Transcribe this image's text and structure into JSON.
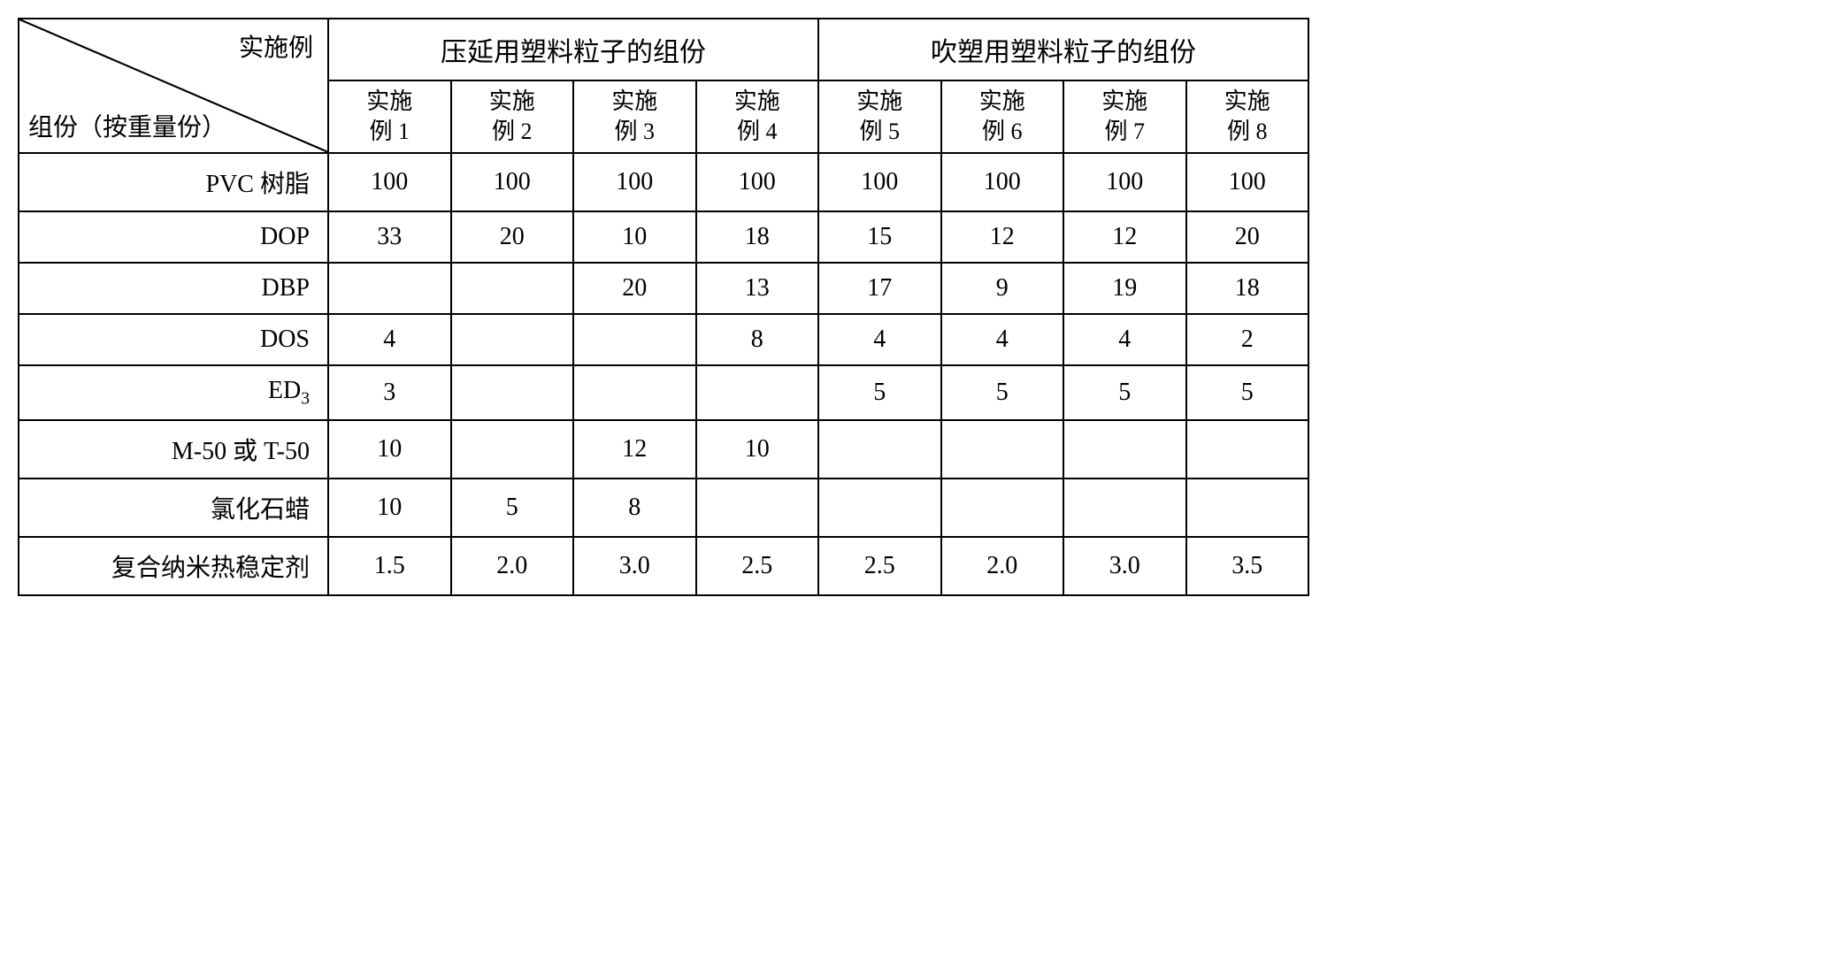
{
  "table": {
    "diag_top": "实施例",
    "diag_bottom": "组份（按重量份）",
    "group_headers": [
      "压延用塑料粒子的组份",
      "吹塑用塑料粒子的组份"
    ],
    "sub_headers": [
      "实施例 1",
      "实施例 2",
      "实施例 3",
      "实施例 4",
      "实施例 5",
      "实施例 6",
      "实施例 7",
      "实施例 8"
    ],
    "rows": [
      {
        "label": "PVC 树脂",
        "cells": [
          "100",
          "100",
          "100",
          "100",
          "100",
          "100",
          "100",
          "100"
        ]
      },
      {
        "label": "DOP",
        "cells": [
          "33",
          "20",
          "10",
          "18",
          "15",
          "12",
          "12",
          "20"
        ]
      },
      {
        "label": "DBP",
        "cells": [
          "",
          "",
          "20",
          "13",
          "17",
          "9",
          "19",
          "18"
        ]
      },
      {
        "label": "DOS",
        "cells": [
          "4",
          "",
          "",
          "8",
          "4",
          "4",
          "4",
          "2"
        ]
      },
      {
        "label_html": "ED<sub>3</sub>",
        "label": "ED3",
        "cells": [
          "3",
          "",
          "",
          "",
          "5",
          "5",
          "5",
          "5"
        ]
      },
      {
        "label": "M-50 或 T-50",
        "cells": [
          "10",
          "",
          "12",
          "10",
          "",
          "",
          "",
          ""
        ]
      },
      {
        "label": "氯化石蜡",
        "cells": [
          "10",
          "5",
          "8",
          "",
          "",
          "",
          "",
          ""
        ]
      },
      {
        "label": "复合纳米热稳定剂",
        "cells": [
          "1.5",
          "2.0",
          "3.0",
          "2.5",
          "2.5",
          "2.0",
          "3.0",
          "3.5"
        ]
      }
    ]
  },
  "style": {
    "border_color": "#000000",
    "border_width": 2,
    "background_color": "#ffffff",
    "text_color": "#000000",
    "base_font_size": 28,
    "group_header_font_size": 30,
    "sub_header_font_size": 26,
    "col_count": 8,
    "label_col_width": 320
  }
}
